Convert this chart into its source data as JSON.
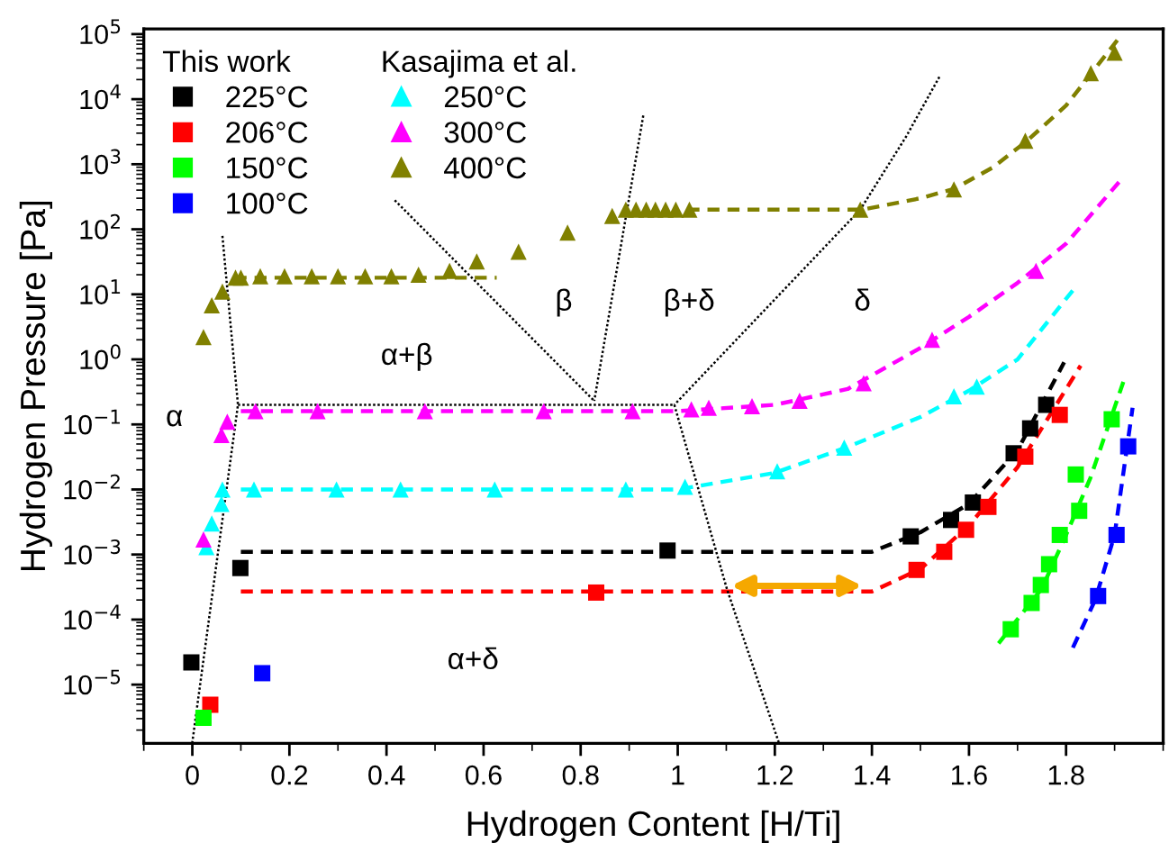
{
  "chart_data": {
    "type": "scatter",
    "xlabel": "Hydrogen Content [H/Ti]",
    "ylabel": "Hydrogen Pressure [Pa]",
    "log": "y",
    "xlim": [
      -0.1,
      2.0
    ],
    "xticks": [
      0,
      0.2,
      0.4,
      0.6,
      0.8,
      1,
      1.2,
      1.4,
      1.6,
      1.8
    ],
    "ylim": [
      1.25e-06,
      120000.0
    ],
    "yticks": [
      {
        "value": 1e-05,
        "label": "10$^{−5}$"
      },
      {
        "value": 0.0001,
        "label": "10$^{−4}$"
      },
      {
        "value": 0.001,
        "label": "10$^{−3}$"
      },
      {
        "value": 0.01,
        "label": "10$^{−2}$"
      },
      {
        "value": 0.1,
        "label": "10$^{−1}$"
      },
      {
        "value": 1,
        "label": "10$^{0}$"
      },
      {
        "value": 10,
        "label": "10$^{1}$"
      },
      {
        "value": 100,
        "label": "10$^{2}$"
      },
      {
        "value": 1000,
        "label": "10$^{3}$"
      },
      {
        "value": 10000,
        "label": "10$^{4}$"
      },
      {
        "value": 100000,
        "label": "10$^{5}$"
      }
    ],
    "grid": false,
    "legend": "top left",
    "series": [
      {
        "name": "225°C",
        "color": "#000000",
        "marker": "square",
        "x": [
          -0.002,
          0.099,
          0.979,
          1.48,
          1.563,
          1.608,
          1.692,
          1.726,
          1.759
        ],
        "values": [
          2.2e-05,
          0.00062,
          0.00115,
          0.0019,
          0.0034,
          0.0063,
          0.036,
          0.087,
          0.2
        ]
      },
      {
        "name": "206°C",
        "color": "#ff0000",
        "marker": "square",
        "x": [
          0.037,
          0.832,
          1.492,
          1.549,
          1.594,
          1.64,
          1.716,
          1.787
        ],
        "values": [
          4.9e-06,
          0.00026,
          0.00058,
          0.0011,
          0.0024,
          0.0054,
          0.032,
          0.14
        ]
      },
      {
        "name": "150°C",
        "color": "#00ff00",
        "marker": "square",
        "x": [
          0.023,
          1.686,
          1.729,
          1.748,
          1.765,
          1.787,
          1.827,
          1.82,
          1.894
        ],
        "values": [
          3.1e-06,
          7.1e-05,
          0.00018,
          0.00034,
          0.00071,
          0.002,
          0.0047,
          0.017,
          0.12
        ]
      },
      {
        "name": "100°C",
        "color": "#0000ff",
        "marker": "square",
        "x": [
          0.144,
          1.866,
          1.904,
          1.928
        ],
        "values": [
          1.5e-05,
          0.00023,
          0.002,
          0.046
        ]
      },
      {
        "name": "250°C",
        "color": "#00ffff",
        "marker": "triangle",
        "x": [
          0.029,
          0.04,
          0.06,
          0.062,
          0.127,
          0.297,
          0.429,
          0.623,
          0.893,
          1.015,
          1.205,
          1.343,
          1.569,
          1.616
        ],
        "values": [
          0.0013,
          0.003,
          0.006,
          0.01,
          0.01,
          0.01,
          0.01,
          0.01,
          0.01,
          0.011,
          0.019,
          0.044,
          0.27,
          0.38
        ]
      },
      {
        "name": "300°C",
        "color": "#ff00ff",
        "marker": "triangle",
        "x": [
          0.023,
          0.06,
          0.072,
          0.13,
          0.258,
          0.479,
          0.724,
          0.907,
          1.028,
          1.064,
          1.153,
          1.251,
          1.383,
          1.524,
          1.738
        ],
        "values": [
          0.0017,
          0.069,
          0.11,
          0.16,
          0.16,
          0.16,
          0.16,
          0.16,
          0.17,
          0.18,
          0.19,
          0.23,
          0.43,
          2.0,
          23
        ]
      },
      {
        "name": "400°C",
        "color": "#808000",
        "marker": "triangle",
        "x": [
          0.023,
          0.04,
          0.062,
          0.089,
          0.1,
          0.14,
          0.19,
          0.246,
          0.3,
          0.356,
          0.41,
          0.466,
          0.53,
          0.586,
          0.672,
          0.773,
          0.865,
          0.893,
          0.914,
          0.935,
          0.954,
          0.975,
          0.996,
          1.024,
          1.376,
          1.569,
          1.716,
          1.851,
          1.9
        ],
        "values": [
          2.2,
          6.8,
          11,
          18,
          18,
          19,
          19,
          19,
          19,
          19,
          19,
          20,
          23,
          32,
          45,
          89,
          160,
          200,
          200,
          200,
          200,
          200,
          200,
          200,
          200,
          410,
          2300,
          25000,
          52000
        ]
      },
      {
        "type": "line",
        "line_style": "dashed",
        "color": "#000000",
        "x": [
          0.1,
          1.4,
          1.5,
          1.6,
          1.7,
          1.796
        ],
        "values": [
          0.0011,
          0.0011,
          0.0022,
          0.006,
          0.04,
          0.9
        ]
      },
      {
        "type": "line",
        "line_style": "dashed",
        "color": "#ff0000",
        "x": [
          0.1,
          1.4,
          1.5,
          1.6,
          1.7,
          1.83
        ],
        "values": [
          0.00027,
          0.00027,
          0.0006,
          0.0028,
          0.022,
          0.8
        ]
      },
      {
        "type": "line",
        "line_style": "dashed",
        "color": "#00ff00",
        "x": [
          1.661,
          1.75,
          1.8,
          1.85,
          1.922
        ],
        "values": [
          4.3e-05,
          0.0003,
          0.002,
          0.015,
          0.55
        ]
      },
      {
        "type": "line",
        "line_style": "dashed",
        "color": "#0000ff",
        "x": [
          1.814,
          1.86,
          1.9,
          1.937
        ],
        "values": [
          3.7e-05,
          0.0002,
          0.002,
          0.18
        ]
      },
      {
        "type": "line",
        "line_style": "dashed",
        "color": "#00ffff",
        "x": [
          0.1,
          1.0,
          1.2,
          1.35,
          1.5,
          1.6,
          1.7,
          1.814
        ],
        "values": [
          0.01,
          0.01,
          0.018,
          0.045,
          0.13,
          0.33,
          1.0,
          11.5
        ]
      },
      {
        "type": "line",
        "line_style": "dashed",
        "color": "#ff00ff",
        "x": [
          0.1,
          1.0,
          1.2,
          1.35,
          1.5,
          1.6,
          1.7,
          1.8,
          1.91
        ],
        "values": [
          0.16,
          0.16,
          0.2,
          0.35,
          1.5,
          4.5,
          15,
          60,
          540
        ]
      },
      {
        "type": "line",
        "line_style": "dashed",
        "color": "#808000",
        "x": [
          0.087,
          0.627
        ],
        "values": [
          18,
          18
        ]
      },
      {
        "type": "line",
        "line_style": "dashed",
        "color": "#808000",
        "x": [
          1.02,
          1.38,
          1.5,
          1.57,
          1.65,
          1.72,
          1.8,
          1.91
        ],
        "values": [
          200,
          200,
          300,
          420,
          900,
          2300,
          8000,
          89000
        ]
      },
      {
        "type": "line",
        "line_style": "dotted",
        "color": "#000000",
        "x": [
          0.062,
          0.094,
          0.0
        ],
        "values": [
          79,
          0.2,
          1.3e-06
        ]
      },
      {
        "type": "line",
        "line_style": "dotted",
        "color": "#000000",
        "x": [
          0.094,
          0.993
        ],
        "values": [
          0.2,
          0.2
        ]
      },
      {
        "type": "line",
        "line_style": "dotted",
        "color": "#000000",
        "x": [
          0.417,
          0.828
        ],
        "values": [
          280,
          0.23
        ]
      },
      {
        "type": "line",
        "line_style": "dotted",
        "color": "#000000",
        "x": [
          0.929,
          0.828
        ],
        "values": [
          5600,
          0.23
        ]
      },
      {
        "type": "line",
        "line_style": "dotted",
        "color": "#000000",
        "x": [
          1.539,
          1.471,
          1.376,
          0.993
        ],
        "values": [
          22000,
          2700,
          200,
          0.2
        ]
      },
      {
        "type": "line",
        "line_style": "dotted",
        "color": "#000000",
        "x": [
          0.993,
          1.101,
          1.208
        ],
        "values": [
          0.2,
          0.0003,
          1.3e-06
        ]
      }
    ],
    "annotations": [
      "This work",
      "Kasajima et al.",
      "α",
      "α+β",
      "β",
      "β+δ",
      "δ",
      "α+δ"
    ]
  }
}
